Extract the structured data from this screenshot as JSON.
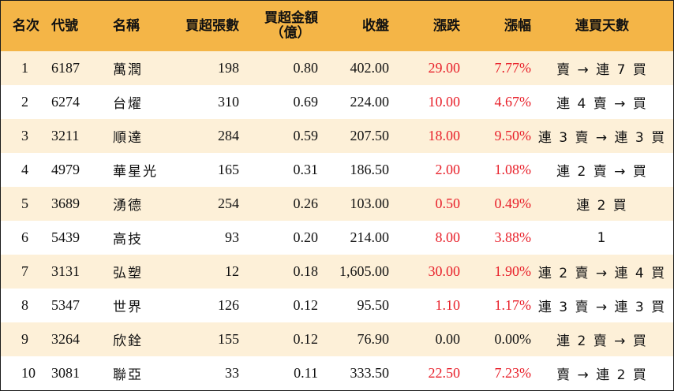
{
  "headers": {
    "rank": "名次",
    "code": "代號",
    "name": "名稱",
    "lots": "買超張數",
    "amount_line1": "買超金額",
    "amount_line2": "（億）",
    "close": "收盤",
    "change": "漲跌",
    "pct": "漲幅",
    "days": "連買天數"
  },
  "colors": {
    "header_bg": "#f4b547",
    "stripe_bg": "#fdf0d8",
    "up_red": "#e8202a"
  },
  "rows": [
    {
      "rank": "1",
      "code": "6187",
      "name": "萬潤",
      "lots": "198",
      "amount": "0.80",
      "close": "402.00",
      "change": "29.00",
      "pct": "7.77%",
      "days": "賣 → 連 7 買",
      "up": true
    },
    {
      "rank": "2",
      "code": "6274",
      "name": "台燿",
      "lots": "310",
      "amount": "0.69",
      "close": "224.00",
      "change": "10.00",
      "pct": "4.67%",
      "days": "連 4 賣 → 買",
      "up": true
    },
    {
      "rank": "3",
      "code": "3211",
      "name": "順達",
      "lots": "284",
      "amount": "0.59",
      "close": "207.50",
      "change": "18.00",
      "pct": "9.50%",
      "days": "連 3 賣 → 連 3 買",
      "up": true
    },
    {
      "rank": "4",
      "code": "4979",
      "name": "華星光",
      "lots": "165",
      "amount": "0.31",
      "close": "186.50",
      "change": "2.00",
      "pct": "1.08%",
      "days": "連 2 賣 → 買",
      "up": true
    },
    {
      "rank": "5",
      "code": "3689",
      "name": "湧德",
      "lots": "254",
      "amount": "0.26",
      "close": "103.00",
      "change": "0.50",
      "pct": "0.49%",
      "days": "連 2 買",
      "up": true
    },
    {
      "rank": "6",
      "code": "5439",
      "name": "高技",
      "lots": "93",
      "amount": "0.20",
      "close": "214.00",
      "change": "8.00",
      "pct": "3.88%",
      "days": "1",
      "up": true
    },
    {
      "rank": "7",
      "code": "3131",
      "name": "弘塑",
      "lots": "12",
      "amount": "0.18",
      "close": "1,605.00",
      "change": "30.00",
      "pct": "1.90%",
      "days": "連 2 賣 → 連 4 買",
      "up": true
    },
    {
      "rank": "8",
      "code": "5347",
      "name": "世界",
      "lots": "126",
      "amount": "0.12",
      "close": "95.50",
      "change": "1.10",
      "pct": "1.17%",
      "days": "連 3 賣 → 連 3 買",
      "up": true
    },
    {
      "rank": "9",
      "code": "3264",
      "name": "欣銓",
      "lots": "155",
      "amount": "0.12",
      "close": "76.90",
      "change": "0.00",
      "pct": "0.00%",
      "days": "連 2 賣 → 買",
      "up": false
    },
    {
      "rank": "10",
      "code": "3081",
      "name": "聯亞",
      "lots": "33",
      "amount": "0.11",
      "close": "333.50",
      "change": "22.50",
      "pct": "7.23%",
      "days": "賣 → 連 2 買",
      "up": true
    }
  ]
}
